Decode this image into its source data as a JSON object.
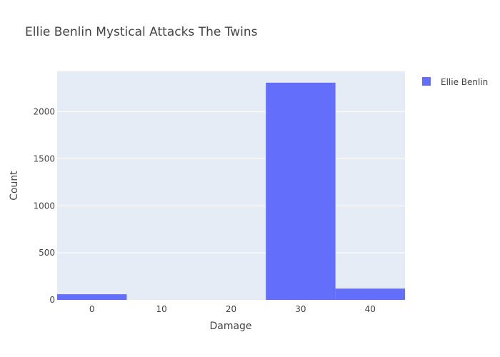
{
  "chart_data": {
    "type": "bar",
    "title": "Ellie Benlin Mystical Attacks The Twins",
    "xlabel": "Damage",
    "ylabel": "Count",
    "bin_width": 10,
    "bins": [
      {
        "x": 0,
        "count": 60
      },
      {
        "x": 10,
        "count": 0
      },
      {
        "x": 20,
        "count": 0
      },
      {
        "x": 30,
        "count": 2310
      },
      {
        "x": 40,
        "count": 120
      }
    ],
    "xlim": [
      -5,
      45
    ],
    "ylim": [
      0,
      2430
    ],
    "xticks": [
      0,
      10,
      20,
      30,
      40
    ],
    "yticks": [
      0,
      500,
      1000,
      1500,
      2000
    ],
    "series": [
      {
        "name": "Ellie Benlin",
        "color": "#636efa"
      }
    ],
    "plot_bgcolor": "#e5ecf6",
    "grid": true,
    "legend_position": "top-right"
  }
}
